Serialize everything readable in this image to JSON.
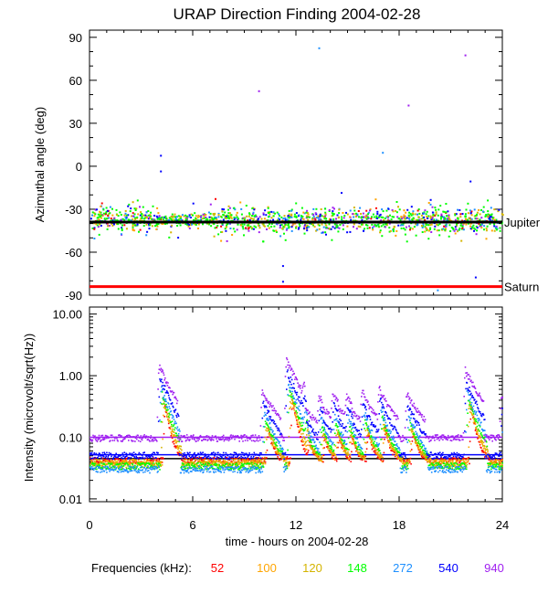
{
  "chart_data": {
    "title": "URAP Direction Finding  2004-02-28",
    "xlabel": "time - hours on 2004-02-28",
    "x_ticks": [
      0,
      6,
      12,
      18,
      24
    ],
    "x_tick_labels": [
      "0",
      "6",
      "12",
      "18",
      "24"
    ],
    "xlim": [
      0,
      24
    ],
    "panels": [
      {
        "id": "azimuth",
        "type": "scatter",
        "ylabel": "Azimuthal angle (deg)",
        "ylim": [
          -90,
          95
        ],
        "y_ticks": [
          90,
          60,
          30,
          0,
          -30,
          -60,
          -90
        ],
        "y_tick_labels": [
          "90",
          "60",
          "30",
          "0",
          "-30",
          "-60",
          "-90"
        ],
        "reference_lines": [
          {
            "name": "Jupiter",
            "value": -39,
            "color": "#000000"
          },
          {
            "name": "Saturn",
            "value": -84,
            "color": "#ff0000"
          }
        ],
        "cluster": {
          "center": -37,
          "spread": 6
        },
        "outliers": [
          {
            "x": 4.1,
            "y": 8,
            "color": "#0000ff"
          },
          {
            "x": 4.1,
            "y": -3,
            "color": "#0000ff"
          },
          {
            "x": 9.8,
            "y": 53,
            "color": "#a020f0"
          },
          {
            "x": 13.3,
            "y": 83,
            "color": "#1e90ff"
          },
          {
            "x": 18.5,
            "y": 43,
            "color": "#a020f0"
          },
          {
            "x": 21.8,
            "y": 78,
            "color": "#a020f0"
          },
          {
            "x": 11.2,
            "y": -69,
            "color": "#0000ff"
          },
          {
            "x": 11.2,
            "y": -80,
            "color": "#0000ff"
          },
          {
            "x": 20.2,
            "y": -86,
            "color": "#1e90ff"
          },
          {
            "x": 22.4,
            "y": -77,
            "color": "#0000ff"
          },
          {
            "x": 17.0,
            "y": 10,
            "color": "#1e90ff"
          },
          {
            "x": 14.6,
            "y": -18,
            "color": "#0000ff"
          },
          {
            "x": 22.1,
            "y": -10,
            "color": "#0000ff"
          }
        ]
      },
      {
        "id": "intensity",
        "type": "line",
        "ylabel": "Intensity (microvolt/sqrt(Hz))",
        "yscale": "log",
        "ylim": [
          0.009,
          13
        ],
        "y_ticks": [
          10,
          1,
          0.1,
          0.01
        ],
        "y_tick_labels": [
          "10.00",
          "1.00",
          "0.10",
          "0.01"
        ],
        "reference_lines": [
          {
            "value": 0.1,
            "color": "#a020f0"
          },
          {
            "value": 0.052,
            "color": "#0000ff"
          },
          {
            "value": 0.045,
            "color": "#000000"
          }
        ],
        "bursts": [
          {
            "t": 4.0,
            "peak": 1.25
          },
          {
            "t": 10.0,
            "peak": 0.5
          },
          {
            "t": 11.4,
            "peak": 1.55
          },
          {
            "t": 12.4,
            "peak": 0.3
          },
          {
            "t": 13.3,
            "peak": 0.35
          },
          {
            "t": 14.1,
            "peak": 0.38
          },
          {
            "t": 14.9,
            "peak": 0.33
          },
          {
            "t": 15.8,
            "peak": 0.45
          },
          {
            "t": 16.8,
            "peak": 0.5
          },
          {
            "t": 18.4,
            "peak": 0.45
          },
          {
            "t": 21.8,
            "peak": 1.1
          },
          {
            "t": 23.9,
            "peak": 0.4
          }
        ],
        "series": [
          {
            "name": "52",
            "color": "#ff0000",
            "baseline": 0.043
          },
          {
            "name": "100",
            "color": "#ffa500",
            "baseline": 0.04
          },
          {
            "name": "120",
            "color": "#d4b400",
            "baseline": 0.037
          },
          {
            "name": "148",
            "color": "#00ff00",
            "baseline": 0.035
          },
          {
            "name": "272",
            "color": "#1e90ff",
            "baseline": 0.031
          },
          {
            "name": "540",
            "color": "#0000ff",
            "baseline": 0.052
          },
          {
            "name": "940",
            "color": "#a020f0",
            "baseline": 0.1
          }
        ]
      }
    ],
    "legend": {
      "label": "Frequencies (kHz):",
      "entries": [
        {
          "name": "52",
          "color": "#ff0000"
        },
        {
          "name": "100",
          "color": "#ffa500"
        },
        {
          "name": "120",
          "color": "#d4b400"
        },
        {
          "name": "148",
          "color": "#00ff00"
        },
        {
          "name": "272",
          "color": "#1e90ff"
        },
        {
          "name": "540",
          "color": "#0000ff"
        },
        {
          "name": "940",
          "color": "#a020f0"
        }
      ]
    }
  }
}
